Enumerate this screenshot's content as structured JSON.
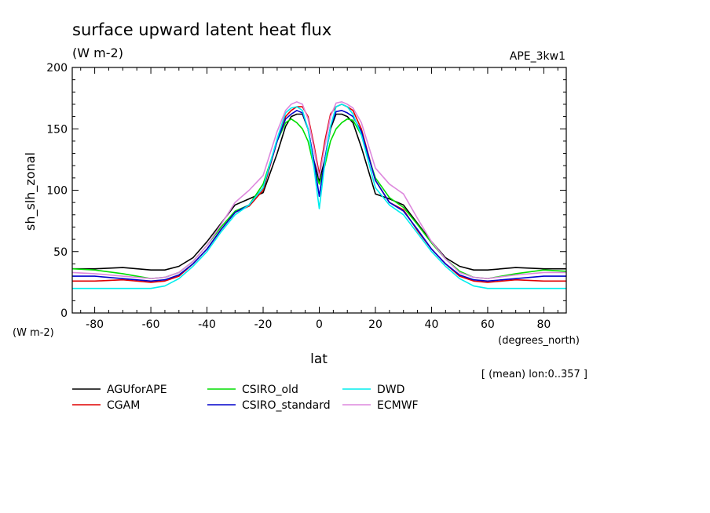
{
  "chart_data": {
    "type": "line",
    "title": "surface upward latent heat flux",
    "units": "(W m-2)",
    "experiment": "APE_3kw1",
    "ylabel": "sh_slh_zonal",
    "yunits": "(W m-2)",
    "xlabel": "lat",
    "xunits": "(degrees_north)",
    "note": "[ (mean) lon:0..357 ]",
    "xlim": [
      -88,
      88
    ],
    "ylim": [
      0,
      200
    ],
    "xticks": [
      -80,
      -60,
      -40,
      -20,
      0,
      20,
      40,
      60,
      80
    ],
    "yticks": [
      0,
      50,
      100,
      150,
      200
    ],
    "grid": false,
    "legend_position": "bottom",
    "x": [
      -88,
      -80,
      -70,
      -60,
      -55,
      -50,
      -45,
      -40,
      -35,
      -30,
      -25,
      -20,
      -15,
      -12,
      -10,
      -8,
      -6,
      -4,
      -2,
      0,
      2,
      4,
      6,
      8,
      10,
      12,
      15,
      20,
      25,
      30,
      35,
      40,
      45,
      50,
      55,
      60,
      70,
      80,
      88
    ],
    "series": [
      {
        "name": "AGUforAPE",
        "color": "#000000",
        "values": [
          36,
          36,
          37,
          35,
          35,
          38,
          45,
          58,
          73,
          88,
          93,
          98,
          130,
          152,
          160,
          162,
          162,
          150,
          125,
          107,
          125,
          150,
          162,
          162,
          160,
          155,
          135,
          97,
          93,
          88,
          73,
          58,
          45,
          38,
          35,
          35,
          37,
          36,
          36
        ]
      },
      {
        "name": "CGAM",
        "color": "#e00000",
        "values": [
          26,
          26,
          27,
          25,
          26,
          30,
          40,
          52,
          68,
          82,
          87,
          100,
          140,
          160,
          165,
          168,
          168,
          160,
          138,
          113,
          140,
          162,
          168,
          170,
          168,
          165,
          150,
          108,
          90,
          84,
          67,
          52,
          40,
          30,
          26,
          25,
          27,
          26,
          26
        ]
      },
      {
        "name": "CSIRO_old",
        "color": "#00dd00",
        "values": [
          36,
          35,
          32,
          28,
          29,
          33,
          42,
          55,
          70,
          83,
          88,
          105,
          140,
          155,
          158,
          155,
          150,
          140,
          120,
          105,
          120,
          140,
          150,
          155,
          158,
          157,
          145,
          110,
          94,
          86,
          72,
          57,
          44,
          34,
          29,
          28,
          32,
          35,
          34
        ]
      },
      {
        "name": "CSIRO_standard",
        "color": "#0000cc",
        "values": [
          30,
          30,
          28,
          26,
          27,
          31,
          40,
          52,
          68,
          82,
          88,
          102,
          140,
          158,
          162,
          165,
          163,
          150,
          125,
          95,
          125,
          152,
          164,
          165,
          163,
          160,
          148,
          108,
          90,
          83,
          68,
          52,
          40,
          31,
          27,
          26,
          28,
          30,
          30
        ]
      },
      {
        "name": "DWD",
        "color": "#00eeee",
        "values": [
          20,
          20,
          20,
          20,
          22,
          28,
          38,
          50,
          66,
          80,
          88,
          102,
          142,
          163,
          167,
          168,
          165,
          150,
          120,
          85,
          122,
          152,
          168,
          170,
          168,
          162,
          145,
          102,
          88,
          80,
          65,
          50,
          38,
          28,
          22,
          20,
          20,
          20,
          20
        ]
      },
      {
        "name": "ECMWF",
        "color": "#dd88dd",
        "values": [
          33,
          32,
          30,
          28,
          29,
          33,
          42,
          55,
          72,
          90,
          100,
          112,
          148,
          165,
          170,
          172,
          170,
          158,
          135,
          110,
          136,
          160,
          171,
          172,
          170,
          167,
          155,
          118,
          105,
          97,
          77,
          58,
          44,
          33,
          29,
          28,
          31,
          33,
          33
        ]
      }
    ]
  }
}
